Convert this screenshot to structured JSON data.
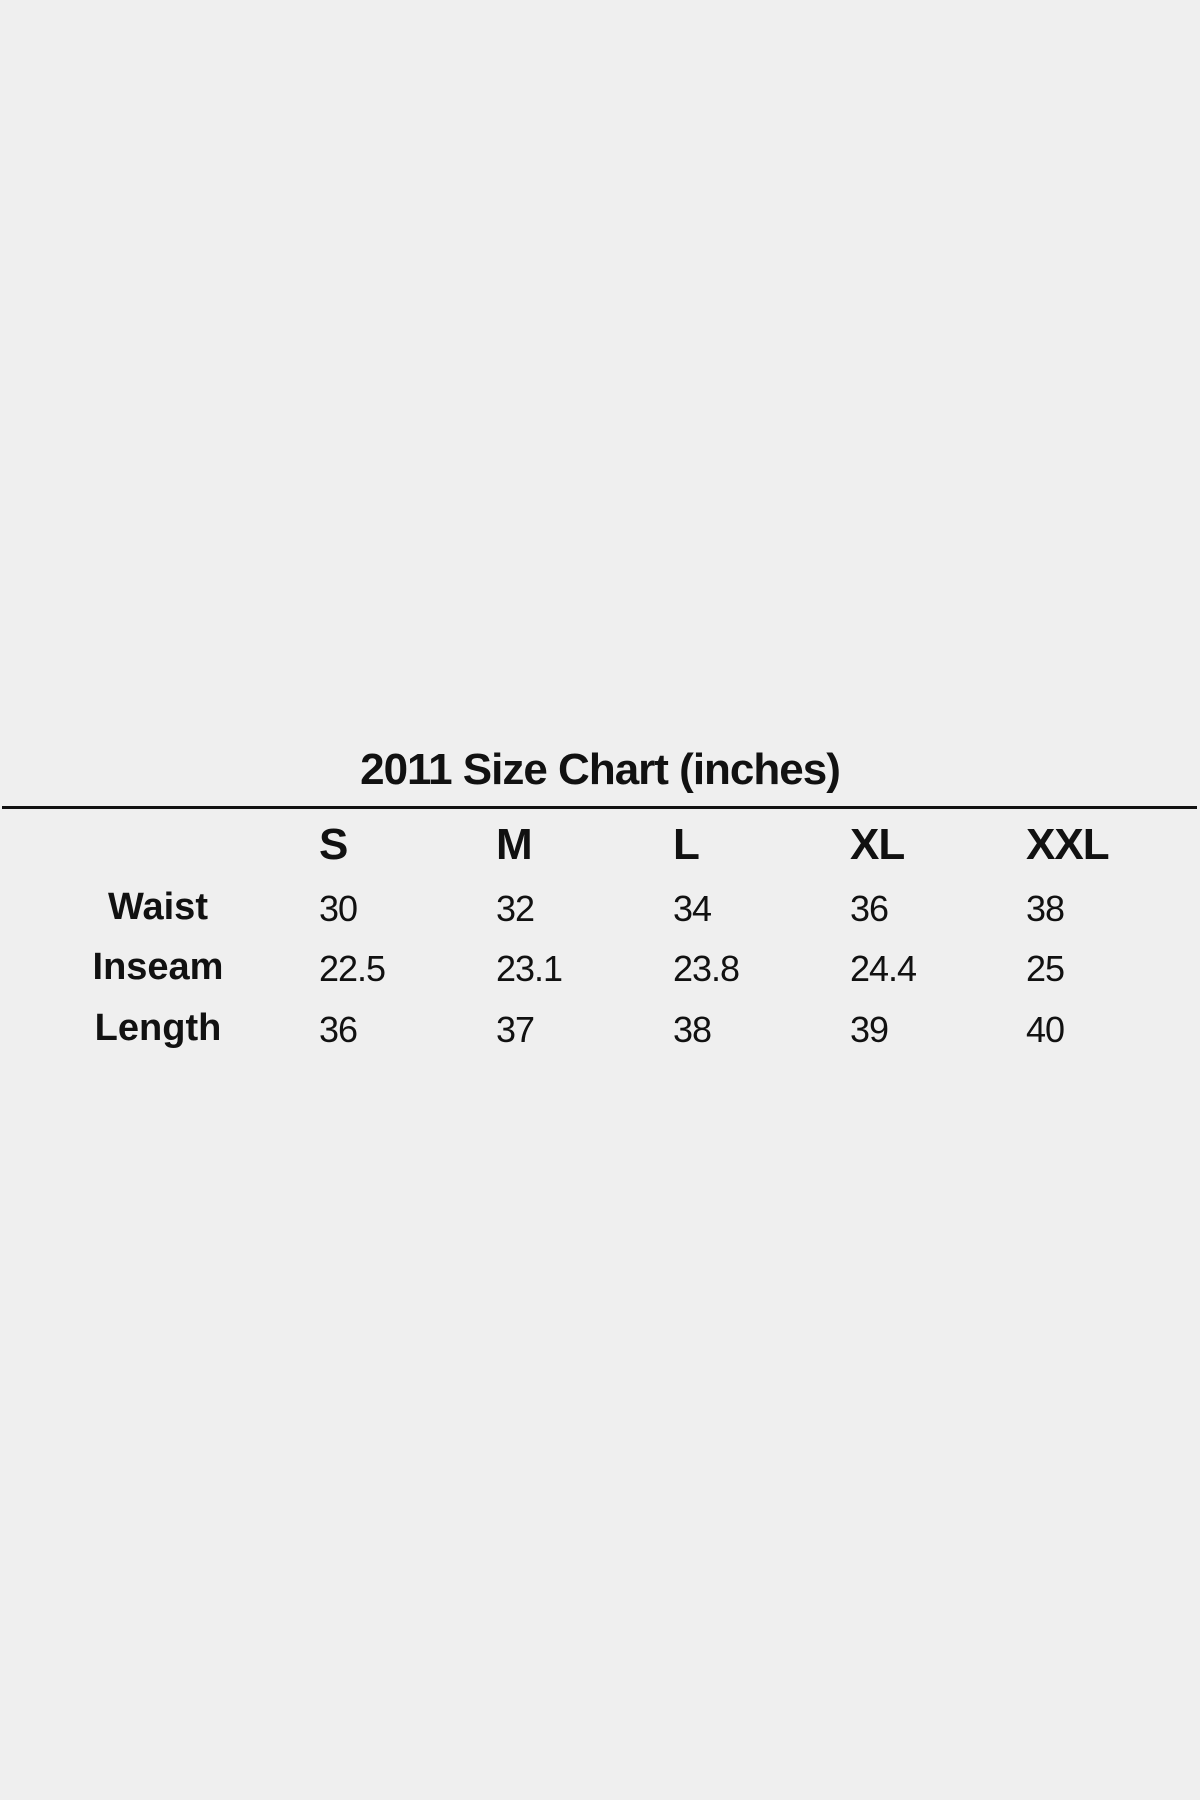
{
  "title": "2011 Size Chart (inches)",
  "chart_data": {
    "type": "table",
    "title": "2011 Size Chart (inches)",
    "columns": [
      "S",
      "M",
      "L",
      "XL",
      "XXL"
    ],
    "rows": [
      {
        "label": "Waist",
        "values": [
          "30",
          "32",
          "34",
          "36",
          "38"
        ]
      },
      {
        "label": "Inseam",
        "values": [
          "22.5",
          "23.1",
          "23.8",
          "24.4",
          "25"
        ]
      },
      {
        "label": "Length",
        "values": [
          "36",
          "37",
          "38",
          "39",
          "40"
        ]
      }
    ]
  }
}
